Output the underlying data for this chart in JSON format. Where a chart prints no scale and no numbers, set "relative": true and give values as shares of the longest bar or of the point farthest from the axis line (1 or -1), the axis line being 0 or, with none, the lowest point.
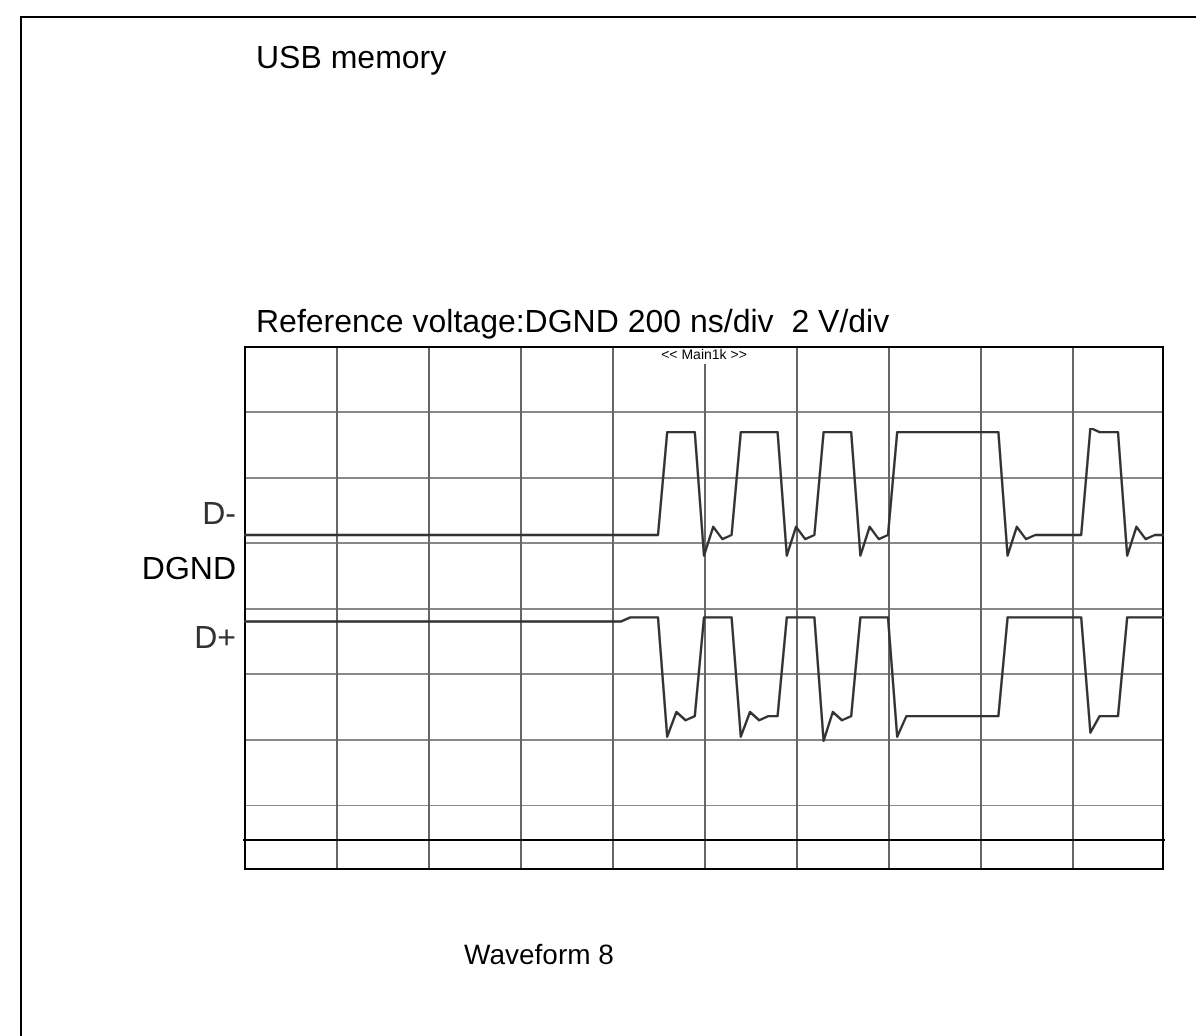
{
  "chart_data": {
    "type": "line",
    "title": "USB memory",
    "subtitle": "Reference voltage:DGND 200 ns/div  2 V/div",
    "annotations": [
      "DGND",
      "<< Main1k >>",
      "Waveform 8"
    ],
    "relative": true,
    "line_style": "solid",
    "categories": [
      null,
      null,
      null,
      null,
      null,
      null,
      null,
      null,
      null,
      null,
      null,
      null,
      null,
      null,
      null,
      null,
      null,
      null,
      null,
      null,
      null,
      null,
      null,
      null,
      null,
      null,
      null,
      null,
      null,
      null,
      null,
      null,
      null,
      null,
      null,
      null,
      null,
      null,
      null,
      null,
      null,
      null,
      null,
      null,
      null,
      null,
      null,
      null,
      null,
      null,
      null,
      null,
      null,
      null,
      null,
      null,
      null,
      null,
      null,
      null,
      null,
      null,
      null,
      null,
      null,
      null,
      null,
      null,
      null,
      null,
      null,
      null,
      null,
      null,
      null,
      null,
      null,
      null,
      null,
      null,
      null,
      null,
      null,
      null,
      null,
      null,
      null,
      null,
      null,
      null,
      null,
      null,
      null,
      null,
      null,
      null,
      null,
      null,
      null,
      null,
      null
    ],
    "series": [
      {
        "name": "D-",
        "color": "#333333",
        "values": [
          0.74,
          0.74,
          0.74,
          0.74,
          0.74,
          0.74,
          0.74,
          0.74,
          0.74,
          0.74,
          0.74,
          0.74,
          0.74,
          0.74,
          0.74,
          0.74,
          0.74,
          0.74,
          0.74,
          0.74,
          0.74,
          0.74,
          0.74,
          0.74,
          0.74,
          0.74,
          0.74,
          0.74,
          0.74,
          0.74,
          0.74,
          0.74,
          0.74,
          0.74,
          0.74,
          0.74,
          0.74,
          0.74,
          0.74,
          0.74,
          0.74,
          0.74,
          0.74,
          0.74,
          0.74,
          0.74,
          0.99,
          0.99,
          0.99,
          0.99,
          0.69,
          0.76,
          0.73,
          0.74,
          0.99,
          0.99,
          0.99,
          0.99,
          0.99,
          0.69,
          0.76,
          0.73,
          0.74,
          0.99,
          0.99,
          0.99,
          0.99,
          0.69,
          0.76,
          0.73,
          0.74,
          0.99,
          0.99,
          0.99,
          0.99,
          0.99,
          0.99,
          0.99,
          0.99,
          0.99,
          0.99,
          0.99,
          0.99,
          0.69,
          0.76,
          0.73,
          0.74,
          0.74,
          0.74,
          0.74,
          0.74,
          0.74,
          1.0,
          0.99,
          0.99,
          0.99,
          0.69,
          0.76,
          0.73,
          0.74,
          0.74
        ]
      },
      {
        "name": "D+",
        "color": "#333333",
        "values": [
          0.53,
          0.53,
          0.53,
          0.53,
          0.53,
          0.53,
          0.53,
          0.53,
          0.53,
          0.53,
          0.53,
          0.53,
          0.53,
          0.53,
          0.53,
          0.53,
          0.53,
          0.53,
          0.53,
          0.53,
          0.53,
          0.53,
          0.53,
          0.53,
          0.53,
          0.53,
          0.53,
          0.53,
          0.53,
          0.53,
          0.53,
          0.53,
          0.53,
          0.53,
          0.53,
          0.53,
          0.53,
          0.53,
          0.53,
          0.53,
          0.53,
          0.53,
          0.54,
          0.54,
          0.54,
          0.54,
          0.25,
          0.31,
          0.29,
          0.3,
          0.54,
          0.54,
          0.54,
          0.54,
          0.25,
          0.31,
          0.29,
          0.3,
          0.3,
          0.54,
          0.54,
          0.54,
          0.54,
          0.24,
          0.31,
          0.29,
          0.3,
          0.54,
          0.54,
          0.54,
          0.54,
          0.25,
          0.3,
          0.3,
          0.3,
          0.3,
          0.3,
          0.3,
          0.3,
          0.3,
          0.3,
          0.3,
          0.3,
          0.54,
          0.54,
          0.54,
          0.54,
          0.54,
          0.54,
          0.54,
          0.54,
          0.54,
          0.26,
          0.3,
          0.3,
          0.3,
          0.54,
          0.54,
          0.54,
          0.54,
          0.54
        ]
      }
    ]
  }
}
